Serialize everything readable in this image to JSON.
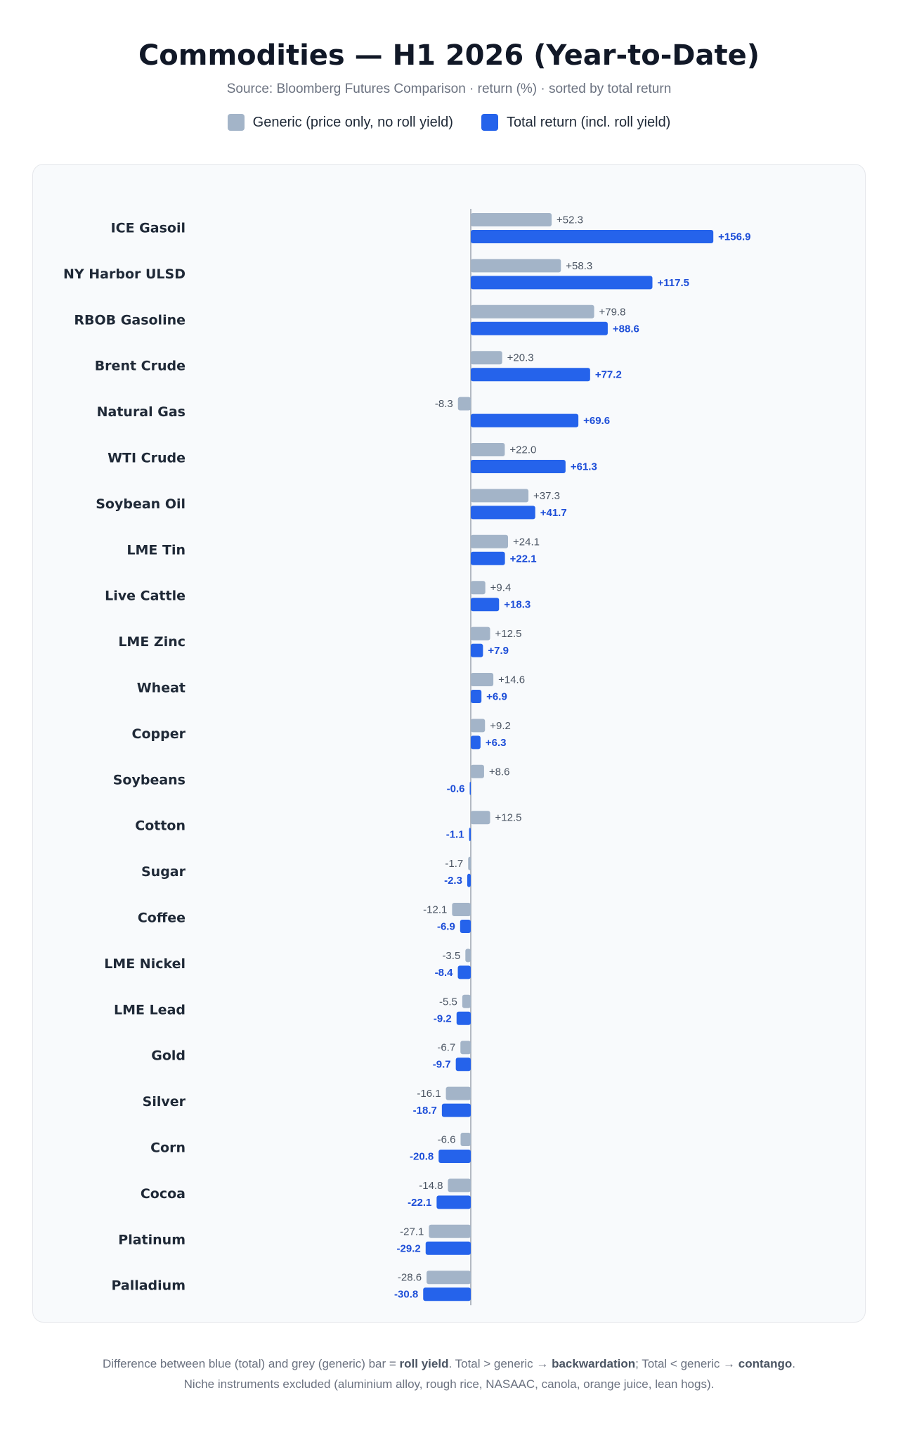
{
  "colors": {
    "generic": "#a3b4c8",
    "total": "#2563eb",
    "generic_label": "#4b5563",
    "total_label": "#1d4ed8",
    "axis": "#9ca3af"
  },
  "legend": {
    "generic": "Generic (price only, no roll yield)",
    "total": "Total return (incl. roll yield)"
  },
  "footer": {
    "line1_a": "Difference between blue (total) and grey (generic) bar = ",
    "line1_b": "roll yield",
    "line1_c": ". Total > generic → ",
    "line1_d": "backwardation",
    "line1_e": "; Total < generic → ",
    "line1_f": "contango",
    "line1_g": ".",
    "line2": "Niche instruments excluded (aluminium alloy, rough rice, NASAAC, canola, orange juice, lean hogs)."
  },
  "chart_data": {
    "type": "bar",
    "orientation": "horizontal",
    "title": "Commodities — H1 2026 (Year-to-Date)",
    "subtitle": "Source: Bloomberg Futures Comparison · return (%) · sorted by total return",
    "categories": [
      "ICE Gasoil",
      "NY Harbor ULSD",
      "RBOB Gasoline",
      "Brent Crude",
      "Natural Gas",
      "WTI Crude",
      "Soybean Oil",
      "LME Tin",
      "Live Cattle",
      "LME Zinc",
      "Wheat",
      "Copper",
      "Soybeans",
      "Cotton",
      "Sugar",
      "Coffee",
      "LME Nickel",
      "LME Lead",
      "Gold",
      "Silver",
      "Corn",
      "Cocoa",
      "Platinum",
      "Palladium"
    ],
    "series": [
      {
        "name": "Generic (price only, no roll yield)",
        "values": [
          52.3,
          58.3,
          79.8,
          20.3,
          -8.3,
          22.0,
          37.3,
          24.1,
          9.4,
          12.5,
          14.6,
          9.2,
          8.6,
          12.5,
          -1.7,
          -12.1,
          -3.5,
          -5.5,
          -6.7,
          -16.1,
          -6.6,
          -14.8,
          -27.1,
          -28.6
        ]
      },
      {
        "name": "Total return (incl. roll yield)",
        "values": [
          156.9,
          117.5,
          88.6,
          77.2,
          69.6,
          61.3,
          41.7,
          22.1,
          18.3,
          7.9,
          6.9,
          6.3,
          -0.6,
          -1.1,
          -2.3,
          -6.9,
          -8.4,
          -9.2,
          -9.7,
          -18.7,
          -20.8,
          -22.1,
          -29.2,
          -30.8
        ]
      }
    ],
    "xlim": [
      -35,
      175
    ],
    "legend_position": "top-center",
    "grid": false
  }
}
